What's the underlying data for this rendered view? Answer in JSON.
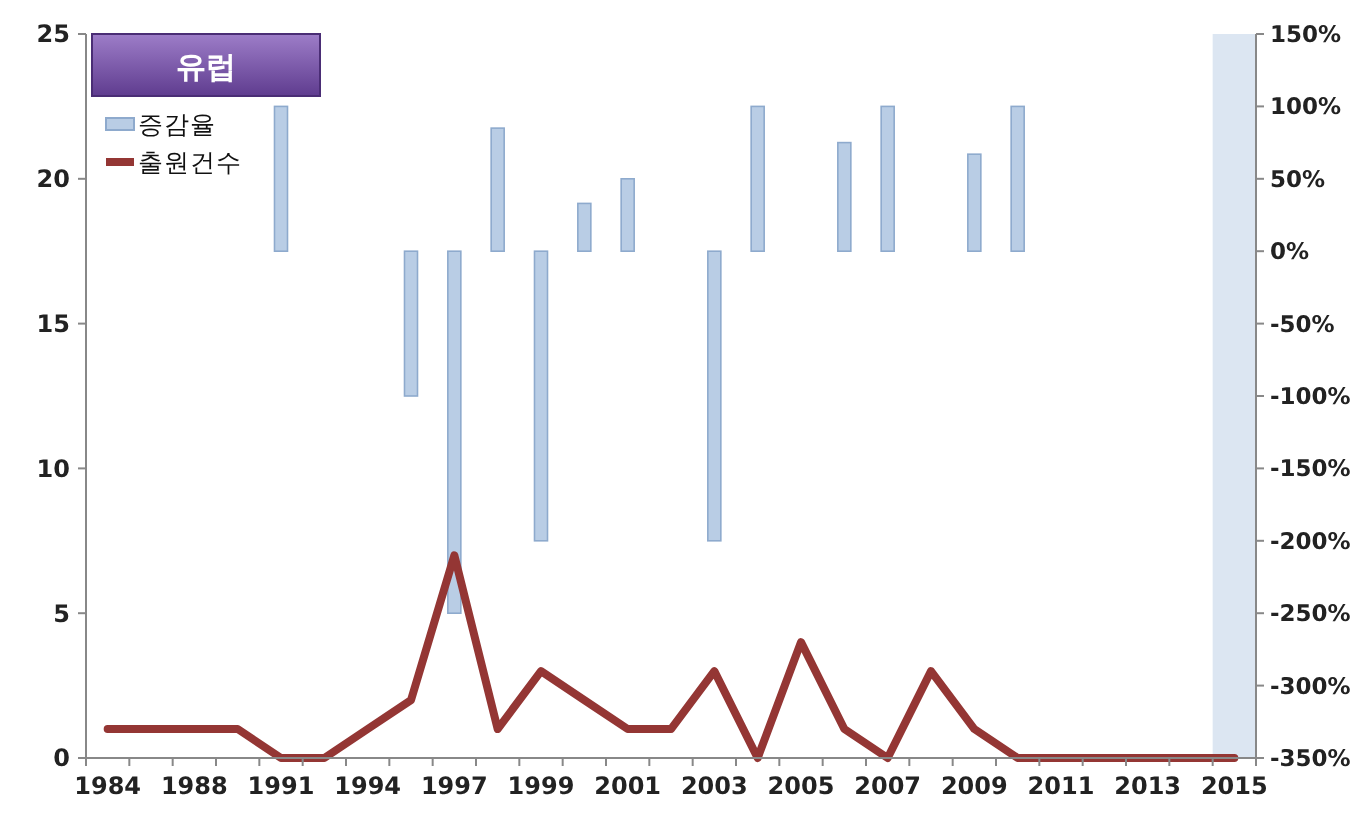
{
  "chart_data": {
    "type": "bar",
    "title": "유럽",
    "categories": [
      "1984",
      null,
      "1988",
      null,
      "1991",
      null,
      "1994",
      null,
      "1997",
      null,
      "1999",
      null,
      "2001",
      null,
      "2003",
      null,
      "2005",
      null,
      "2007",
      null,
      "2009",
      null,
      "2011",
      null,
      "2013",
      null,
      "2015"
    ],
    "series": [
      {
        "name": "증감율",
        "axis": "y2",
        "color": "#b9cde5",
        "values": [
          null,
          null,
          null,
          null,
          100,
          null,
          null,
          -100,
          -250,
          85,
          -200,
          33,
          50,
          null,
          -200,
          100,
          null,
          75,
          100,
          null,
          67,
          100,
          null,
          null,
          null,
          null,
          null
        ]
      },
      {
        "name": "출원건수",
        "type": "line",
        "color": "#943634",
        "values": [
          1,
          1,
          1,
          1,
          0,
          0,
          1,
          2,
          7,
          1,
          3,
          2,
          1,
          1,
          3,
          0,
          4,
          1,
          0,
          3,
          1,
          0,
          0,
          0,
          0,
          0,
          0
        ]
      }
    ],
    "ylim": [
      0,
      25
    ],
    "yticks": [
      0,
      5,
      10,
      15,
      20,
      25
    ],
    "y2lim": [
      -350,
      150
    ],
    "y2ticks": [
      {
        "value": -350,
        "label": "-350%"
      },
      {
        "value": -300,
        "label": "-300%"
      },
      {
        "value": -250,
        "label": "-250%"
      },
      {
        "value": -200,
        "label": "-200%"
      },
      {
        "value": -150,
        "label": "-150%"
      },
      {
        "value": -100,
        "label": "-100%"
      },
      {
        "value": -50,
        "label": "-50%"
      },
      {
        "value": 0,
        "label": "0%"
      },
      {
        "value": 50,
        "label": "50%"
      },
      {
        "value": 100,
        "label": "100%"
      },
      {
        "value": 150,
        "label": "150%"
      }
    ],
    "bands": [
      {
        "axis": "x",
        "from": "2015",
        "to": "2015",
        "color": "#dce6f2"
      }
    ],
    "legend": "top left",
    "marker": "none",
    "line_style": "solid",
    "grid": false
  }
}
